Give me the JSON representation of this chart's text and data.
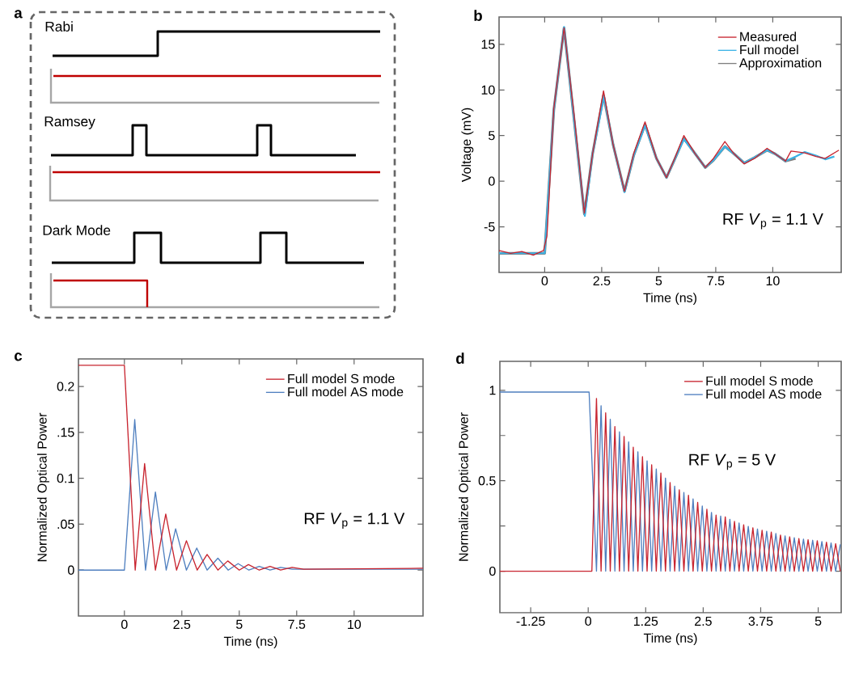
{
  "chart_data": [
    {
      "type": "other",
      "annotations": [
        "a",
        "Rabi",
        "Ramsey",
        "Dark Mode"
      ]
    },
    {
      "type": "line",
      "annotations": [
        "b",
        "RF *V*$_{p}$ = 1.1 V"
      ],
      "xlabel": "Time (ns)",
      "ylabel": "Voltage (mV)",
      "xlim": [
        -2,
        13
      ],
      "ylim": [
        -10,
        18
      ],
      "xticks": [
        0,
        2.5,
        5,
        7.5,
        10
      ],
      "yticks": [
        -5,
        0,
        5,
        10,
        15
      ],
      "legend": "top right",
      "series": [
        {
          "name": "Measured",
          "color": "#c8242f",
          "x": [
            -2,
            -1.5,
            -1,
            -0.5,
            -0.05,
            0.1,
            0.4,
            0.85,
            1.3,
            1.74,
            2.1,
            2.58,
            3.0,
            3.5,
            3.9,
            4.4,
            4.9,
            5.34,
            5.7,
            6.1,
            6.6,
            7.04,
            7.4,
            7.9,
            8.3,
            8.75,
            9.2,
            9.75,
            10.1,
            10.56,
            10.8,
            11.4,
            11.9,
            12.3,
            12.9
          ],
          "values": [
            -7.6,
            -7.9,
            -7.7,
            -8.1,
            -7.6,
            -6,
            8,
            16.8,
            7,
            -3.5,
            3,
            9.9,
            4,
            -1.1,
            3,
            6.5,
            2.5,
            0.4,
            2.5,
            5.0,
            3,
            1.5,
            2.5,
            4.35,
            3,
            1.9,
            2.5,
            3.6,
            3,
            2.2,
            3.3,
            3.1,
            2.7,
            2.5,
            3.4
          ]
        },
        {
          "name": "Full model",
          "color": "#3bb3e6",
          "x": [
            -2,
            0,
            0.4,
            0.85,
            1.3,
            1.76,
            2.1,
            2.6,
            3.0,
            3.5,
            3.9,
            4.4,
            4.9,
            5.34,
            5.7,
            6.1,
            6.6,
            7.04,
            7.4,
            7.9,
            8.3,
            8.75,
            9.2,
            9.75,
            10.1,
            10.56,
            11,
            11.4,
            11.9,
            12.3,
            12.7
          ],
          "values": [
            -7.9,
            -7.9,
            7.8,
            16.9,
            6.5,
            -3.8,
            3,
            9.3,
            4,
            -1.2,
            2.8,
            6.1,
            2.5,
            0.4,
            2.4,
            4.6,
            3,
            1.5,
            2.3,
            3.8,
            3,
            2.0,
            2.6,
            3.4,
            3,
            2.2,
            2.7,
            3.2,
            2.8,
            2.4,
            2.7
          ]
        },
        {
          "name": "Approximation",
          "color": "#7f7f7f",
          "x": [
            -2,
            0,
            0.4,
            0.85,
            1.3,
            1.74,
            2.1,
            2.58,
            3.0,
            3.5,
            3.9,
            4.4,
            4.9,
            5.34,
            5.7,
            6.1,
            6.6,
            7.04,
            7.4,
            7.9,
            8.3,
            8.75,
            9.2,
            9.75,
            10.1,
            10.56,
            11.0
          ],
          "values": [
            -7.9,
            -7.9,
            7.8,
            16.8,
            6.5,
            -3.6,
            3,
            9.4,
            4,
            -1.1,
            2.8,
            6.2,
            2.5,
            0.4,
            2.4,
            4.7,
            3,
            1.5,
            2.3,
            3.8,
            3,
            2.0,
            2.6,
            3.4,
            3,
            2.2,
            2.5
          ]
        }
      ]
    },
    {
      "type": "line",
      "annotations": [
        "c",
        "RF *V*$_{p}$ = 1.1 V"
      ],
      "xlabel": "Time (ns)",
      "ylabel": "Normalized Optical Power",
      "xlim": [
        -2,
        13
      ],
      "ylim": [
        -0.05,
        0.23
      ],
      "xticks": [
        0,
        2.5,
        5,
        7.5,
        10
      ],
      "yticks": [
        0,
        {
          "value": 0.05,
          "label": ".05"
        },
        0.1,
        {
          "value": 0.15,
          "label": ".15"
        },
        0.2
      ],
      "legend": "top right",
      "series": [
        {
          "name": "Full model S mode",
          "color": "#c8242f",
          "x": [
            -2,
            0,
            0.47,
            0.88,
            1.35,
            1.8,
            2.27,
            2.7,
            3.17,
            3.6,
            4.07,
            4.5,
            5.0,
            5.4,
            5.87,
            6.34,
            6.8,
            7.3,
            7.8,
            13
          ],
          "values": [
            0.223,
            0.223,
            0,
            0.116,
            0,
            0.061,
            0,
            0.032,
            0,
            0.017,
            0,
            0.01,
            0,
            0.006,
            0,
            0.004,
            0,
            0.003,
            0.001,
            0.002
          ]
        },
        {
          "name": "Full model AS mode",
          "color": "#4f7fbf",
          "x": [
            -2,
            0,
            0.45,
            0.92,
            1.35,
            1.82,
            2.23,
            2.7,
            3.15,
            3.6,
            4.07,
            4.52,
            4.95,
            5.42,
            5.87,
            6.34,
            6.8,
            7.3,
            13
          ],
          "values": [
            0,
            0,
            0.164,
            0,
            0.085,
            0,
            0.045,
            0,
            0.024,
            0,
            0.013,
            0,
            0.007,
            0,
            0.004,
            0,
            0.003,
            0.001,
            0.001
          ]
        }
      ]
    },
    {
      "type": "line",
      "annotations": [
        "d",
        "RF *V*$_{p}$ = 5 V"
      ],
      "xlabel": "Time (ns)",
      "ylabel": "Normalized Optical Power",
      "xlim": [
        -1.92,
        5.5
      ],
      "ylim": [
        -0.23,
        1.16
      ],
      "xticks": [
        -1.25,
        0,
        1.25,
        2.5,
        3.75,
        5
      ],
      "yticks": [
        0,
        {
          "value": 0.25,
          "label": null
        },
        0.5,
        {
          "value": 0.75,
          "label": null
        },
        1
      ],
      "legend": "top right",
      "series": [
        {
          "name": "Full model S mode",
          "color": "#c8242f",
          "x": [
            -1.92,
            0.08,
            0.18,
            0.28,
            0.38,
            0.48,
            0.58,
            0.68,
            0.78,
            0.88,
            0.98,
            1.08,
            1.18,
            1.28,
            1.38,
            1.48,
            1.58,
            1.68,
            1.78,
            1.88,
            1.98,
            2.08,
            2.18,
            2.28,
            2.38,
            2.48,
            2.58,
            2.68,
            2.78,
            2.88,
            2.98,
            3.08,
            3.18,
            3.28,
            3.38,
            3.48,
            3.58,
            3.68,
            3.78,
            3.88,
            3.98,
            4.08,
            4.18,
            4.28,
            4.38,
            4.48,
            4.58,
            4.68,
            4.78,
            4.88,
            4.98,
            5.08,
            5.18,
            5.28,
            5.38,
            5.48
          ],
          "values": [
            0,
            0,
            0.955,
            0,
            0.875,
            0,
            0.8,
            0,
            0.745,
            0,
            0.685,
            0,
            0.633,
            0,
            0.588,
            0,
            0.543,
            0,
            0.49,
            0,
            0.45,
            0,
            0.42,
            0,
            0.38,
            0,
            0.342,
            0,
            0.31,
            0,
            0.3,
            0,
            0.275,
            0,
            0.257,
            0,
            0.24,
            0,
            0.226,
            0,
            0.216,
            0,
            0.2,
            0,
            0.19,
            0,
            0.18,
            0,
            0.174,
            0,
            0.168,
            0,
            0.16,
            0,
            0.152,
            0
          ]
        },
        {
          "name": "Full model AS mode",
          "color": "#4f7fbf",
          "x": [
            -1.92,
            0.02,
            0.18,
            0.28,
            0.38,
            0.48,
            0.58,
            0.68,
            0.78,
            0.88,
            0.98,
            1.08,
            1.18,
            1.28,
            1.38,
            1.48,
            1.58,
            1.68,
            1.78,
            1.88,
            1.98,
            2.08,
            2.18,
            2.28,
            2.38,
            2.48,
            2.58,
            2.68,
            2.78,
            2.88,
            2.98,
            3.08,
            3.18,
            3.28,
            3.38,
            3.48,
            3.58,
            3.68,
            3.78,
            3.88,
            3.98,
            4.08,
            4.18,
            4.28,
            4.38,
            4.48,
            4.58,
            4.68,
            4.78,
            4.88,
            4.98,
            5.08,
            5.18,
            5.28,
            5.38,
            5.48
          ],
          "values": [
            0.99,
            0.99,
            0,
            0.915,
            0,
            0.84,
            0,
            0.77,
            0,
            0.715,
            0,
            0.66,
            0,
            0.61,
            0,
            0.565,
            0,
            0.515,
            0,
            0.47,
            0,
            0.435,
            0,
            0.4,
            0,
            0.36,
            0,
            0.325,
            0,
            0.305,
            0,
            0.287,
            0,
            0.266,
            0,
            0.248,
            0,
            0.233,
            0,
            0.221,
            0,
            0.208,
            0,
            0.195,
            0,
            0.185,
            0,
            0.177,
            0,
            0.171,
            0,
            0.164,
            0,
            0.156,
            0,
            0.148
          ]
        }
      ]
    }
  ]
}
